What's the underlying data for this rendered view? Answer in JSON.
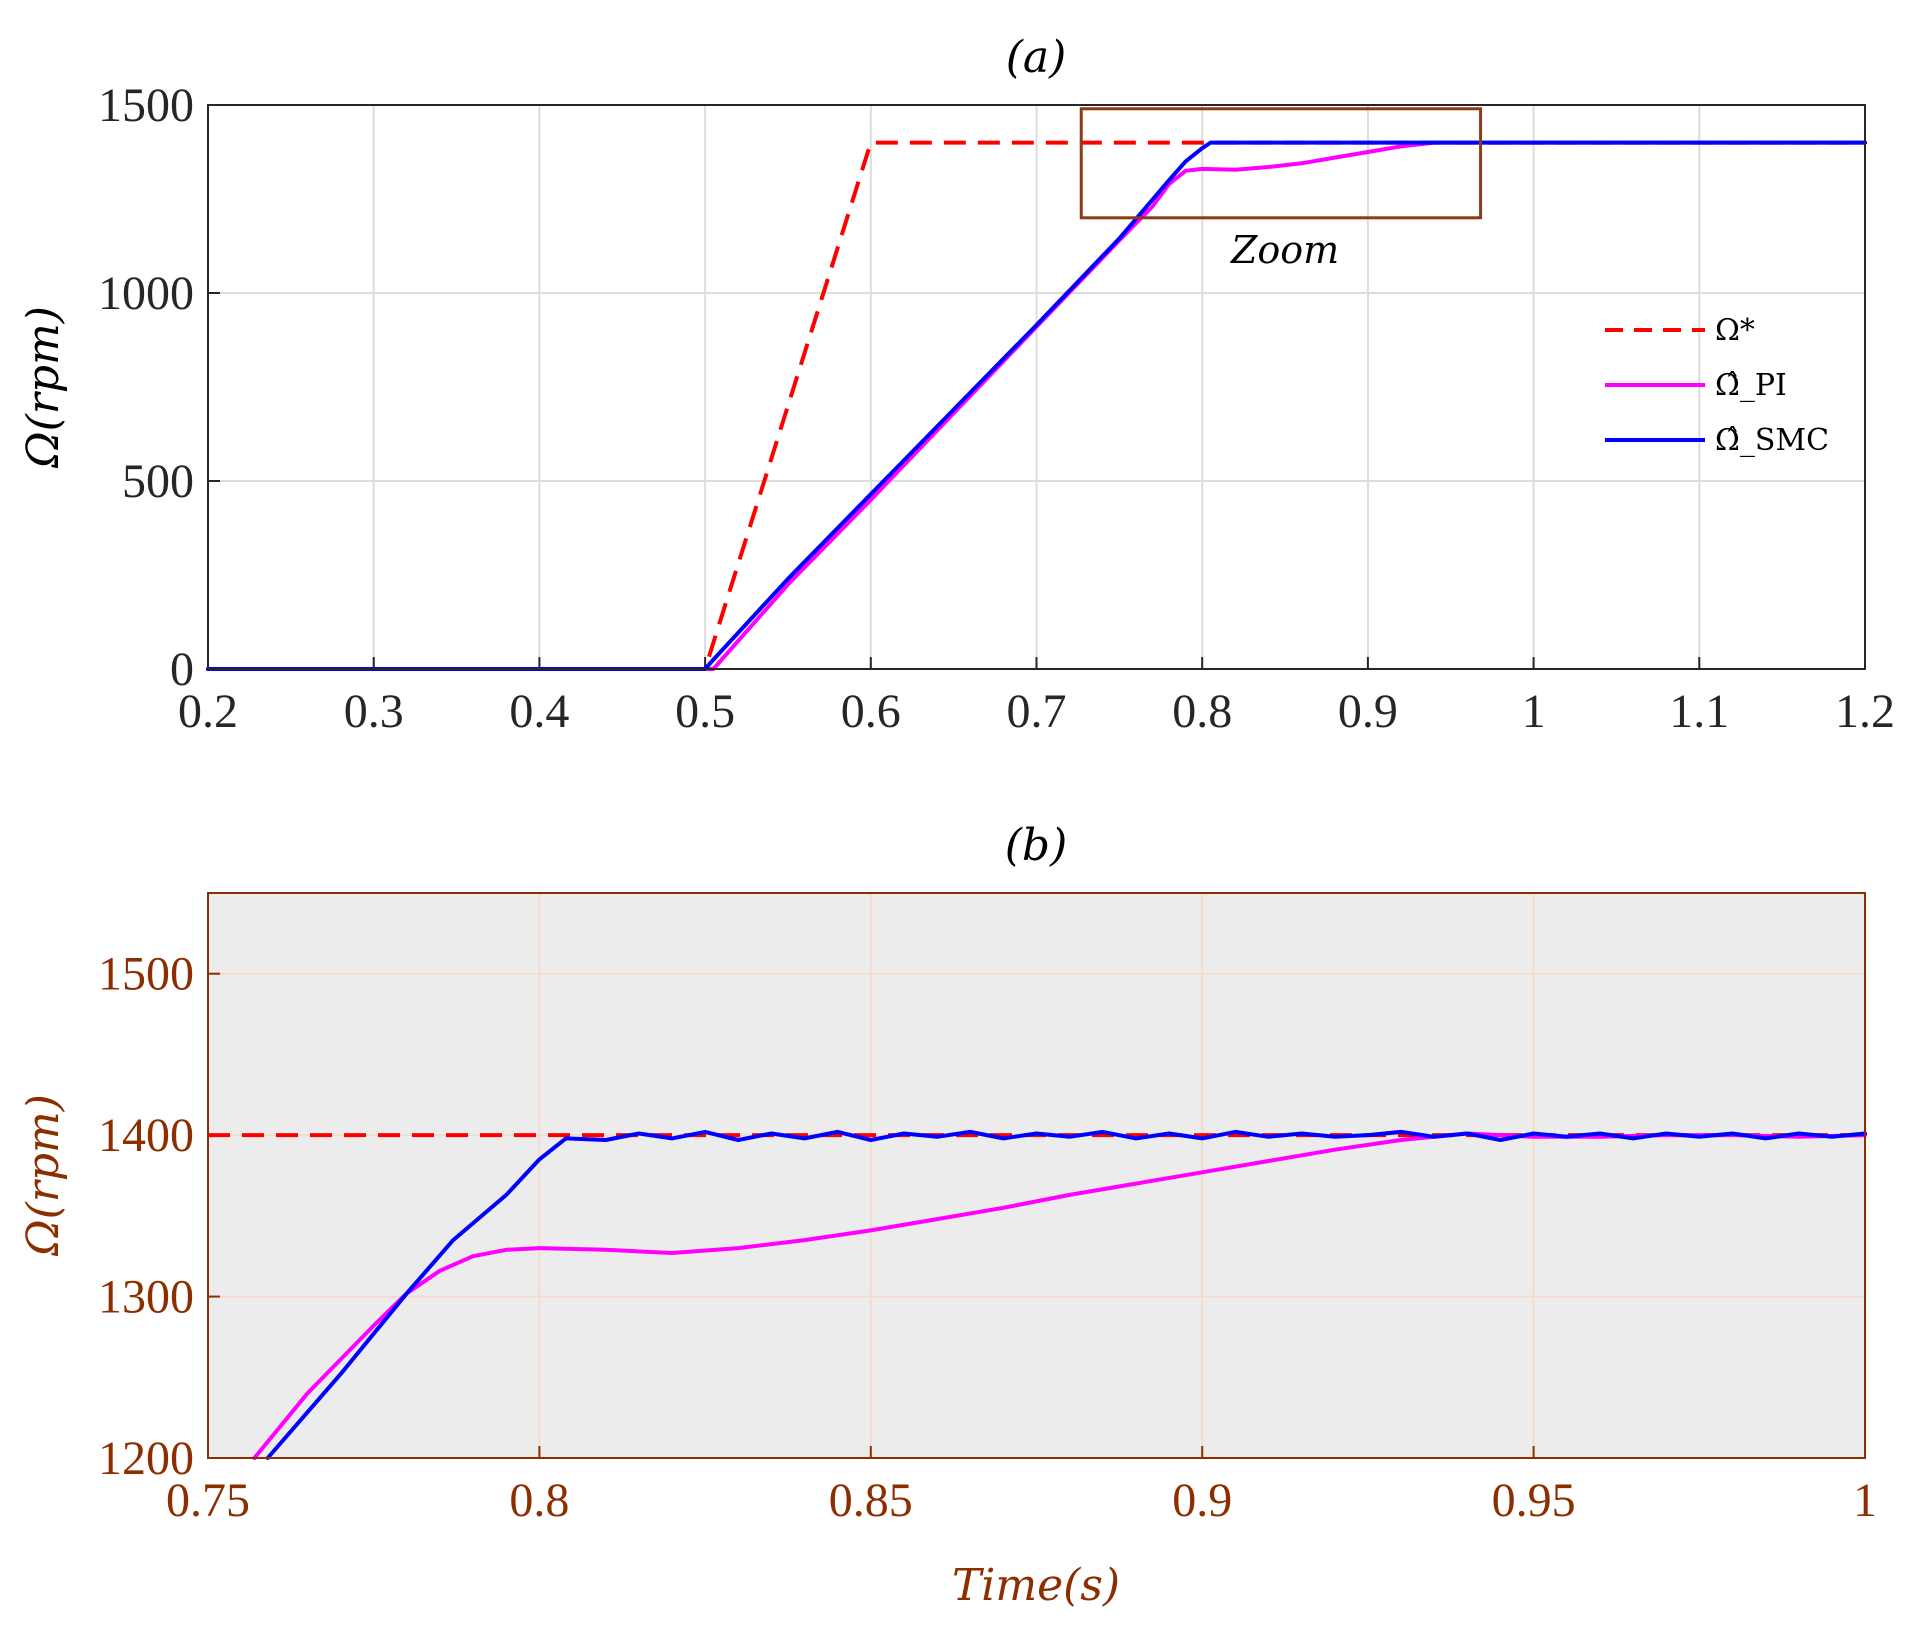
{
  "colors": {
    "reference": "#ff0000",
    "pi": "#ff00ff",
    "smc": "#0000ff",
    "zoom_box": "#8b3a1a",
    "axis_b": "#8b2e00",
    "axis_a": "#262626"
  },
  "chart_data": [
    {
      "id": "a",
      "type": "line",
      "title": "(a)",
      "xlabel": "",
      "ylabel": "Ω(rpm)",
      "xlim": [
        0.2,
        1.2
      ],
      "ylim": [
        0,
        1500
      ],
      "xticks": [
        0.2,
        0.3,
        0.4,
        0.5,
        0.6,
        0.7,
        0.8,
        0.9,
        1,
        1.1,
        1.2
      ],
      "xtick_labels": [
        "0.2",
        "0.3",
        "0.4",
        "0.5",
        "0.6",
        "0.7",
        "0.8",
        "0.9",
        "1",
        "1.1",
        "1.2"
      ],
      "yticks": [
        0,
        500,
        1000,
        1500
      ],
      "ytick_labels": [
        "0",
        "500",
        "1000",
        "1500"
      ],
      "grid": true,
      "legend_position": "right",
      "annotation": {
        "text": "Zoom",
        "box_x": [
          0.727,
          0.968
        ],
        "box_y": [
          1200,
          1490
        ],
        "text_at": [
          0.85,
          1080
        ]
      },
      "series": [
        {
          "name": "Ω*",
          "style": "dashed",
          "color_key": "reference",
          "x": [
            0.2,
            0.5,
            0.6,
            1.2
          ],
          "y": [
            0,
            0,
            1400,
            1400
          ]
        },
        {
          "name": "Ω̂_PI",
          "style": "solid",
          "color_key": "pi",
          "x": [
            0.2,
            0.5,
            0.505,
            0.55,
            0.6,
            0.65,
            0.7,
            0.75,
            0.77,
            0.78,
            0.79,
            0.8,
            0.82,
            0.84,
            0.86,
            0.88,
            0.9,
            0.92,
            0.94,
            1.2
          ],
          "y": [
            0,
            0,
            0,
            225,
            450,
            680,
            910,
            1140,
            1230,
            1290,
            1325,
            1330,
            1328,
            1335,
            1345,
            1360,
            1375,
            1390,
            1400,
            1400
          ]
        },
        {
          "name": "Ω̂_SMC",
          "style": "solid",
          "color_key": "smc",
          "x": [
            0.2,
            0.5,
            0.505,
            0.55,
            0.6,
            0.65,
            0.7,
            0.75,
            0.78,
            0.79,
            0.8,
            0.805,
            1.2
          ],
          "y": [
            0,
            0,
            25,
            240,
            465,
            690,
            915,
            1145,
            1300,
            1350,
            1385,
            1400,
            1400
          ]
        }
      ]
    },
    {
      "id": "b",
      "type": "line",
      "title": "(b)",
      "xlabel": "Time(s)",
      "ylabel": "Ω(rpm)",
      "xlim": [
        0.75,
        1.0
      ],
      "ylim": [
        1200,
        1550
      ],
      "xticks": [
        0.75,
        0.8,
        0.85,
        0.9,
        0.95,
        1
      ],
      "xtick_labels": [
        "0.75",
        "0.8",
        "0.85",
        "0.9",
        "0.95",
        "1"
      ],
      "yticks": [
        1200,
        1300,
        1400,
        1500
      ],
      "ytick_labels": [
        "1200",
        "1300",
        "1400",
        "1500"
      ],
      "grid": true,
      "background": "#ececec",
      "series": [
        {
          "name": "Ω*",
          "style": "dashed",
          "color_key": "reference",
          "x": [
            0.75,
            1.0
          ],
          "y": [
            1400,
            1400
          ]
        },
        {
          "name": "Ω̂_PI",
          "style": "solid",
          "color_key": "pi",
          "x": [
            0.757,
            0.765,
            0.775,
            0.78,
            0.785,
            0.79,
            0.795,
            0.8,
            0.81,
            0.82,
            0.83,
            0.84,
            0.85,
            0.86,
            0.87,
            0.88,
            0.89,
            0.9,
            0.91,
            0.92,
            0.93,
            0.94,
            0.95,
            0.96,
            0.97,
            0.98,
            0.99,
            1.0
          ],
          "y": [
            1200,
            1240,
            1282,
            1302,
            1316,
            1325,
            1329,
            1330,
            1329,
            1327,
            1330,
            1335,
            1341,
            1348,
            1355,
            1363,
            1370,
            1377,
            1384,
            1391,
            1397,
            1401,
            1399,
            1399,
            1400,
            1400,
            1399,
            1400
          ]
        },
        {
          "name": "Ω̂_SMC",
          "style": "solid",
          "color_key": "smc",
          "x": [
            0.759,
            0.77,
            0.78,
            0.787,
            0.795,
            0.8,
            0.804,
            0.81,
            0.815,
            0.82,
            0.825,
            0.83,
            0.835,
            0.84,
            0.845,
            0.85,
            0.855,
            0.86,
            0.865,
            0.87,
            0.875,
            0.88,
            0.885,
            0.89,
            0.895,
            0.9,
            0.905,
            0.91,
            0.915,
            0.92,
            0.925,
            0.93,
            0.935,
            0.94,
            0.945,
            0.95,
            0.955,
            0.96,
            0.965,
            0.97,
            0.975,
            0.98,
            0.985,
            0.99,
            0.995,
            1.0
          ],
          "y": [
            1200,
            1252,
            1302,
            1335,
            1363,
            1385,
            1398,
            1397,
            1401,
            1398,
            1402,
            1397,
            1401,
            1398,
            1402,
            1397,
            1401,
            1399,
            1402,
            1398,
            1401,
            1399,
            1402,
            1398,
            1401,
            1398,
            1402,
            1399,
            1401,
            1399,
            1400,
            1402,
            1399,
            1401,
            1397,
            1401,
            1399,
            1401,
            1398,
            1401,
            1399,
            1401,
            1398,
            1401,
            1399,
            1401
          ]
        }
      ]
    }
  ]
}
